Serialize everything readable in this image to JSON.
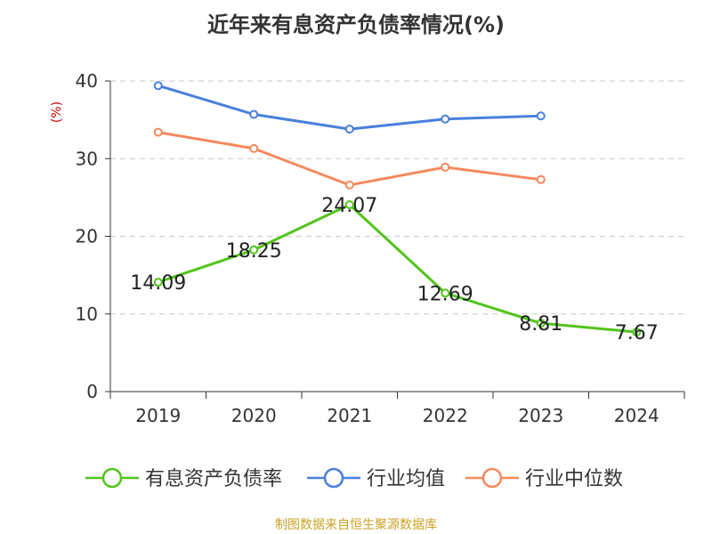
{
  "chart_data": {
    "type": "line",
    "title": "近年来有息资产负债率情况(%)",
    "ylabel": "(%)",
    "xlabel": "",
    "categories": [
      "2019",
      "2020",
      "2021",
      "2022",
      "2023",
      "2024"
    ],
    "ylim": [
      0,
      40
    ],
    "yticks": [
      0,
      10,
      20,
      30,
      40
    ],
    "grid": true,
    "legend_position": "bottom",
    "series": [
      {
        "name": "有息资产负债率",
        "color": "#52c41a",
        "values": [
          14.09,
          18.25,
          24.07,
          12.69,
          8.81,
          7.67
        ],
        "labels": [
          "14.09",
          "18.25",
          "24.07",
          "12.69",
          "8.81",
          "7.67"
        ]
      },
      {
        "name": "行业均值",
        "color": "#4a7fdc",
        "values": [
          39.4,
          35.7,
          33.8,
          35.1,
          35.5,
          null
        ]
      },
      {
        "name": "行业中位数",
        "color": "#f5895e",
        "values": [
          33.4,
          31.3,
          26.6,
          28.9,
          27.3,
          null
        ]
      }
    ]
  },
  "source_note": "制图数据来自恒生聚源数据库"
}
